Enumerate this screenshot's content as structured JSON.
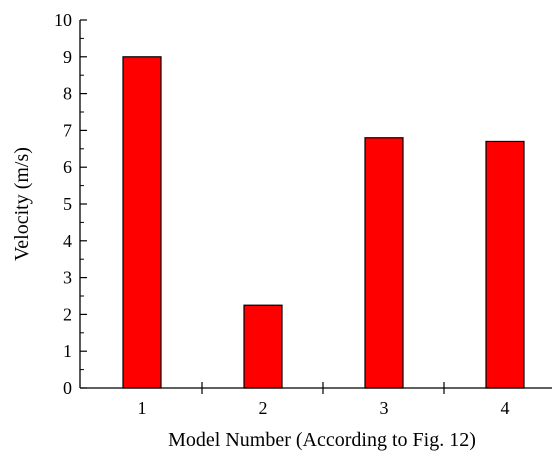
{
  "chart_data": {
    "type": "bar",
    "title": "",
    "xlabel": "Model Number (According to Fig. 12)",
    "ylabel": "Velocity (m/s)",
    "categories": [
      "1",
      "2",
      "3",
      "4"
    ],
    "values": [
      9.0,
      2.25,
      6.8,
      6.7
    ],
    "ylim": [
      0,
      10
    ],
    "yticks": [
      "0",
      "1",
      "2",
      "3",
      "4",
      "5",
      "6",
      "7",
      "8",
      "9",
      "10"
    ],
    "bar_color": "#ff0000",
    "bar_edge_color": "#000000",
    "grid": false,
    "legend": "none"
  }
}
